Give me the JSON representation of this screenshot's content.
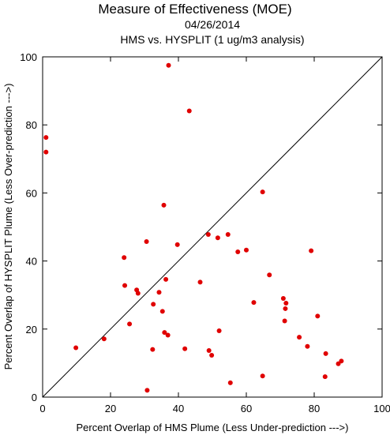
{
  "chart_data": {
    "type": "scatter",
    "title": "Measure of Effectiveness (MOE)",
    "subtitle_date": "04/26/2014",
    "subtitle_analysis": "HMS vs. HYSPLIT  (1 ug/m3 analysis)",
    "xlabel": "Percent Overlap of HMS Plume (Less Under-prediction --->)",
    "ylabel": "Percent Overlap of HYSPLIT Plume (Less Over-prediction --->)",
    "xlim": [
      0,
      100
    ],
    "ylim": [
      0,
      100
    ],
    "x_ticks": [
      "0",
      "20",
      "40",
      "60",
      "80",
      "100"
    ],
    "y_ticks": [
      "0",
      "20",
      "40",
      "60",
      "80",
      "100"
    ],
    "diagonal_reference": true,
    "grid": false,
    "marker_color": "#e00000",
    "points": [
      {
        "x": 1.0,
        "y": 76.3
      },
      {
        "x": 1.0,
        "y": 72.0
      },
      {
        "x": 9.8,
        "y": 14.5
      },
      {
        "x": 18.1,
        "y": 17.1
      },
      {
        "x": 24.0,
        "y": 41.0
      },
      {
        "x": 24.2,
        "y": 32.8
      },
      {
        "x": 25.6,
        "y": 21.5
      },
      {
        "x": 27.7,
        "y": 31.5
      },
      {
        "x": 28.1,
        "y": 30.5
      },
      {
        "x": 30.6,
        "y": 45.7
      },
      {
        "x": 30.8,
        "y": 2.0
      },
      {
        "x": 32.4,
        "y": 14.0
      },
      {
        "x": 32.6,
        "y": 27.3
      },
      {
        "x": 34.3,
        "y": 30.8
      },
      {
        "x": 35.3,
        "y": 25.2
      },
      {
        "x": 35.7,
        "y": 56.4
      },
      {
        "x": 35.9,
        "y": 19.0
      },
      {
        "x": 36.3,
        "y": 34.6
      },
      {
        "x": 36.9,
        "y": 18.2
      },
      {
        "x": 37.1,
        "y": 97.5
      },
      {
        "x": 39.7,
        "y": 44.8
      },
      {
        "x": 41.9,
        "y": 14.2
      },
      {
        "x": 43.2,
        "y": 84.1
      },
      {
        "x": 46.4,
        "y": 33.8
      },
      {
        "x": 48.8,
        "y": 47.8
      },
      {
        "x": 49.0,
        "y": 13.7
      },
      {
        "x": 49.8,
        "y": 12.3
      },
      {
        "x": 51.6,
        "y": 46.8
      },
      {
        "x": 52.0,
        "y": 19.5
      },
      {
        "x": 54.6,
        "y": 47.8
      },
      {
        "x": 55.3,
        "y": 4.2
      },
      {
        "x": 57.5,
        "y": 42.7
      },
      {
        "x": 60.0,
        "y": 43.2
      },
      {
        "x": 62.2,
        "y": 27.8
      },
      {
        "x": 64.8,
        "y": 60.3
      },
      {
        "x": 64.8,
        "y": 6.2
      },
      {
        "x": 66.8,
        "y": 35.9
      },
      {
        "x": 70.9,
        "y": 29.0
      },
      {
        "x": 71.3,
        "y": 22.4
      },
      {
        "x": 71.5,
        "y": 26.0
      },
      {
        "x": 71.7,
        "y": 27.6
      },
      {
        "x": 75.6,
        "y": 17.6
      },
      {
        "x": 78.0,
        "y": 14.9
      },
      {
        "x": 79.1,
        "y": 43.0
      },
      {
        "x": 81.0,
        "y": 23.8
      },
      {
        "x": 83.2,
        "y": 6.0
      },
      {
        "x": 83.4,
        "y": 12.8
      },
      {
        "x": 87.1,
        "y": 9.8
      },
      {
        "x": 88.0,
        "y": 10.6
      }
    ]
  }
}
